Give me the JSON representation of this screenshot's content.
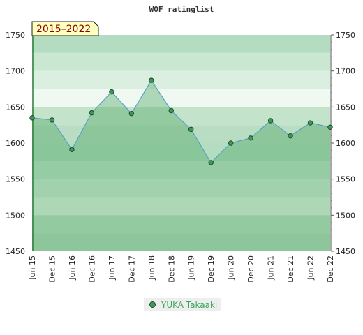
{
  "chart_data": {
    "type": "line",
    "title": "WOF ratinglist",
    "period_badge": "2015–2022",
    "categories": [
      "Jun 15",
      "Dec 15",
      "Jun 16",
      "Dec 16",
      "Jun 17",
      "Dec 17",
      "Jun 18",
      "Dec 18",
      "Jun 19",
      "Dec 19",
      "Jun 20",
      "Dec 20",
      "Jun 21",
      "Dec 21",
      "Jun 22",
      "Dec 22"
    ],
    "series": [
      {
        "name": "YUKA Takaaki",
        "values": [
          1635,
          1632,
          1591,
          1642,
          1671,
          1641,
          1687,
          1645,
          1619,
          1573,
          1600,
          1607,
          1631,
          1610,
          1628,
          1622
        ]
      }
    ],
    "ylim": [
      1450,
      1750
    ],
    "yticks": [
      1450,
      1500,
      1550,
      1600,
      1650,
      1700,
      1750
    ],
    "grid": false,
    "legend_position": "bottom-center",
    "colors": {
      "line": "#5aa0c8",
      "marker_fill": "#3d9a52",
      "marker_stroke": "#1e4a2a",
      "area_fill": "#4aa55f",
      "badge_fill": "#ffffc0"
    }
  }
}
